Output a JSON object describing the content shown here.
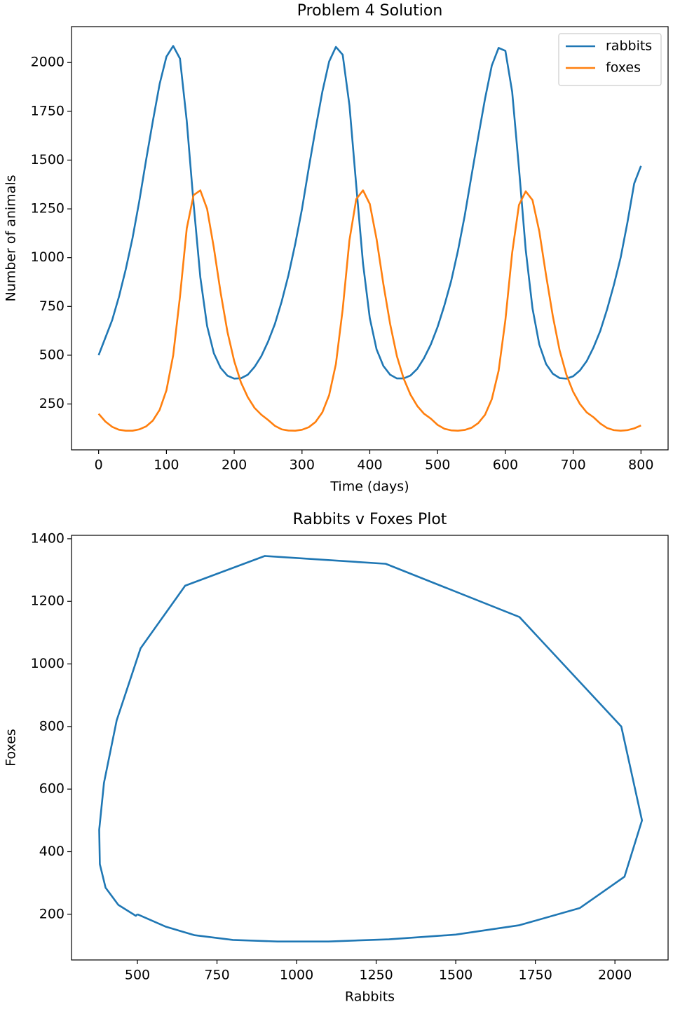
{
  "chart_data": [
    {
      "type": "line",
      "title": "Problem 4 Solution",
      "x_label": "Time (days)",
      "y_label": "Number of animals",
      "x": [
        0,
        10,
        20,
        30,
        40,
        50,
        60,
        70,
        80,
        90,
        100,
        110,
        120,
        130,
        140,
        150,
        160,
        170,
        180,
        190,
        200,
        210,
        220,
        230,
        240,
        250,
        260,
        270,
        280,
        290,
        300,
        310,
        320,
        330,
        340,
        350,
        360,
        370,
        380,
        390,
        400,
        410,
        420,
        430,
        440,
        450,
        460,
        470,
        480,
        490,
        500,
        510,
        520,
        530,
        540,
        550,
        560,
        570,
        580,
        590,
        600,
        610,
        620,
        630,
        640,
        650,
        660,
        670,
        680,
        690,
        700,
        710,
        720,
        730,
        740,
        750,
        760,
        770,
        780,
        790,
        800
      ],
      "series": [
        {
          "name": "rabbits",
          "color": "#1f77b4",
          "values": [
            500,
            590,
            680,
            800,
            940,
            1100,
            1290,
            1500,
            1700,
            1890,
            2030,
            2085,
            2020,
            1700,
            1280,
            900,
            650,
            510,
            435,
            395,
            380,
            382,
            400,
            440,
            495,
            570,
            660,
            775,
            910,
            1070,
            1250,
            1460,
            1660,
            1850,
            2005,
            2080,
            2040,
            1780,
            1370,
            970,
            690,
            530,
            445,
            400,
            381,
            381,
            396,
            430,
            485,
            555,
            645,
            755,
            880,
            1035,
            1215,
            1420,
            1620,
            1815,
            1985,
            2075,
            2060,
            1850,
            1460,
            1040,
            740,
            555,
            455,
            405,
            383,
            380,
            392,
            422,
            470,
            540,
            625,
            735,
            860,
            1000,
            1180,
            1380,
            1470
          ]
        },
        {
          "name": "foxes",
          "color": "#ff7f0e",
          "values": [
            200,
            160,
            133,
            118,
            113,
            113,
            120,
            135,
            165,
            220,
            320,
            500,
            800,
            1150,
            1320,
            1345,
            1250,
            1050,
            820,
            620,
            470,
            360,
            285,
            230,
            195,
            168,
            138,
            120,
            114,
            113,
            118,
            131,
            158,
            207,
            295,
            455,
            735,
            1090,
            1300,
            1345,
            1275,
            1095,
            865,
            660,
            495,
            380,
            298,
            240,
            200,
            175,
            143,
            123,
            115,
            113,
            117,
            128,
            152,
            195,
            275,
            420,
            680,
            1025,
            1270,
            1340,
            1295,
            1135,
            910,
            700,
            525,
            400,
            312,
            250,
            207,
            182,
            150,
            127,
            116,
            113,
            116,
            125,
            140
          ]
        }
      ],
      "xlim": [
        -40,
        840
      ],
      "ylim": [
        15,
        2184
      ],
      "xticks": [
        0,
        100,
        200,
        300,
        400,
        500,
        600,
        700,
        800
      ],
      "yticks": [
        250,
        500,
        750,
        1000,
        1250,
        1500,
        1750,
        2000
      ],
      "legend": "upper right"
    },
    {
      "type": "line",
      "title": "Rabbits v Foxes Plot",
      "x_label": "Rabbits",
      "y_label": "Foxes",
      "x": [
        500,
        590,
        680,
        800,
        940,
        1100,
        1290,
        1500,
        1700,
        1890,
        2030,
        2085,
        2020,
        1700,
        1280,
        900,
        650,
        510,
        435,
        395,
        380,
        382,
        400,
        440,
        495,
        500
      ],
      "series": [
        {
          "color": "#1f77b4",
          "values": [
            200,
            160,
            133,
            118,
            113,
            113,
            120,
            135,
            165,
            220,
            320,
            500,
            800,
            1150,
            1320,
            1345,
            1250,
            1050,
            820,
            620,
            470,
            360,
            285,
            230,
            195,
            200
          ]
        }
      ],
      "xlim": [
        293,
        2167
      ],
      "ylim": [
        54,
        1411
      ],
      "xticks": [
        500,
        750,
        1000,
        1250,
        1500,
        1750,
        2000
      ],
      "yticks": [
        200,
        400,
        600,
        800,
        1000,
        1200,
        1400
      ]
    }
  ]
}
